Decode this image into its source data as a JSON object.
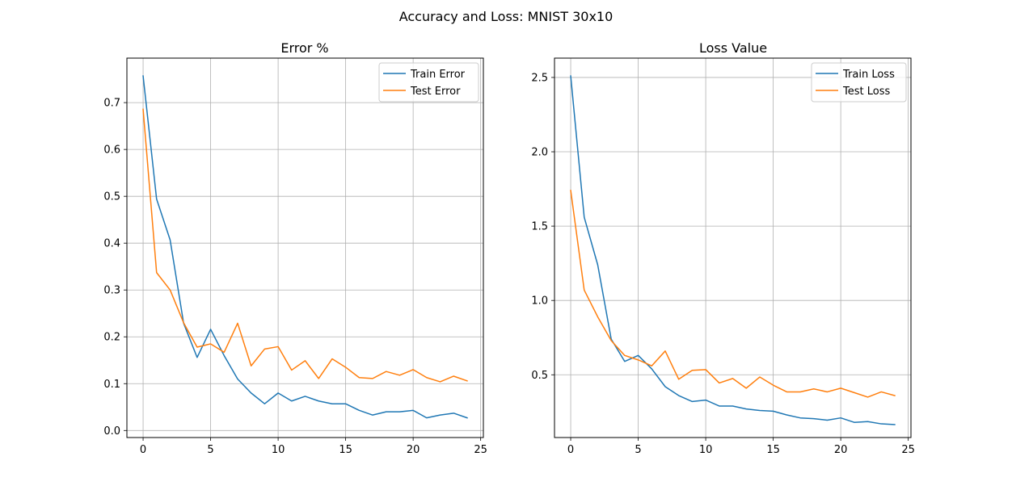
{
  "figure": {
    "suptitle": "Accuracy and Loss: MNIST 30x10"
  },
  "colors": {
    "blue": "#1f77b4",
    "orange": "#ff7f0e",
    "grid": "#b0b0b0"
  },
  "chart_data": [
    {
      "type": "line",
      "title": "Error %",
      "xlabel": "",
      "ylabel": "",
      "xlim": [
        -1.2,
        25.2
      ],
      "ylim": [
        -0.015,
        0.795
      ],
      "xticks": [
        0,
        5,
        10,
        15,
        20,
        25
      ],
      "yticks": [
        0.0,
        0.1,
        0.2,
        0.3,
        0.4,
        0.5,
        0.6,
        0.7
      ],
      "ytick_labels": [
        "0.0",
        "0.1",
        "0.2",
        "0.3",
        "0.4",
        "0.5",
        "0.6",
        "0.7"
      ],
      "grid": true,
      "legend_position": "top-right",
      "x": [
        0,
        1,
        2,
        3,
        4,
        5,
        6,
        7,
        8,
        9,
        10,
        11,
        12,
        13,
        14,
        15,
        16,
        17,
        18,
        19,
        20,
        21,
        22,
        23,
        24
      ],
      "series": [
        {
          "name": "Train Error",
          "color": "#1f77b4",
          "values": [
            0.757,
            0.494,
            0.407,
            0.229,
            0.156,
            0.216,
            0.16,
            0.11,
            0.08,
            0.057,
            0.08,
            0.063,
            0.073,
            0.063,
            0.057,
            0.057,
            0.043,
            0.033,
            0.04,
            0.04,
            0.043,
            0.027,
            0.033,
            0.037,
            0.027
          ]
        },
        {
          "name": "Test Error",
          "color": "#ff7f0e",
          "values": [
            0.686,
            0.337,
            0.3,
            0.23,
            0.178,
            0.185,
            0.167,
            0.229,
            0.138,
            0.174,
            0.179,
            0.129,
            0.149,
            0.111,
            0.153,
            0.135,
            0.113,
            0.111,
            0.126,
            0.118,
            0.13,
            0.113,
            0.104,
            0.116,
            0.106
          ]
        }
      ]
    },
    {
      "type": "line",
      "title": "Loss Value",
      "xlabel": "",
      "ylabel": "",
      "xlim": [
        -1.2,
        25.2
      ],
      "ylim": [
        0.078,
        2.63
      ],
      "xticks": [
        0,
        5,
        10,
        15,
        20,
        25
      ],
      "yticks": [
        0.5,
        1.0,
        1.5,
        2.0,
        2.5
      ],
      "ytick_labels": [
        "0.5",
        "1.0",
        "1.5",
        "2.0",
        "2.5"
      ],
      "grid": true,
      "legend_position": "top-right",
      "x": [
        0,
        1,
        2,
        3,
        4,
        5,
        6,
        7,
        8,
        9,
        10,
        11,
        12,
        13,
        14,
        15,
        16,
        17,
        18,
        19,
        20,
        21,
        22,
        23,
        24
      ],
      "series": [
        {
          "name": "Train Loss",
          "color": "#1f77b4",
          "values": [
            2.51,
            1.56,
            1.24,
            0.74,
            0.59,
            0.63,
            0.54,
            0.42,
            0.36,
            0.32,
            0.33,
            0.29,
            0.29,
            0.27,
            0.26,
            0.255,
            0.23,
            0.21,
            0.205,
            0.195,
            0.21,
            0.18,
            0.185,
            0.17,
            0.165
          ]
        },
        {
          "name": "Test Loss",
          "color": "#ff7f0e",
          "values": [
            1.74,
            1.07,
            0.89,
            0.73,
            0.63,
            0.6,
            0.56,
            0.66,
            0.47,
            0.53,
            0.535,
            0.445,
            0.475,
            0.41,
            0.485,
            0.43,
            0.385,
            0.385,
            0.405,
            0.385,
            0.41,
            0.38,
            0.35,
            0.385,
            0.36
          ]
        }
      ]
    }
  ]
}
